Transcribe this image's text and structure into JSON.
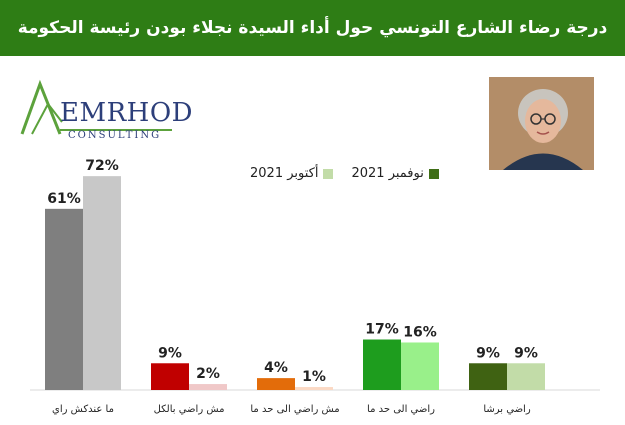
{
  "header": {
    "title": "درجة رضاء الشارع التونسي حول أداء السيدة نجلاء بودن رئيسة الحكومة"
  },
  "logo": {
    "word": "EMRHOD",
    "sub": "CONSULTING"
  },
  "chart_data": {
    "type": "bar",
    "categories": [
      "ما عندكش راي",
      "مش راضي بالكل",
      "مش راضي الى حد ما",
      "راضي الى حد ما",
      "راضي برشا"
    ],
    "series": [
      {
        "name": "نوفمبر 2021",
        "values": [
          61,
          9,
          4,
          17,
          9
        ]
      },
      {
        "name": "أكتوبر 2021",
        "values": [
          72,
          2,
          1,
          16,
          9
        ]
      }
    ],
    "value_labels": [
      [
        "61%",
        "9%",
        "4%",
        "17%",
        "9%"
      ],
      [
        "72%",
        "2%",
        "1%",
        "16%",
        "9%"
      ]
    ],
    "legend_placement": "top-center",
    "grid": false,
    "colors": {
      "series1": [
        "#7f7f7f",
        "#c00000",
        "#e36c0a",
        "#1e9d1e",
        "#3f6212"
      ],
      "series2": [
        "#c8c8c8",
        "#f0c8c8",
        "#fbd9c4",
        "#99f08a",
        "#c2dca8"
      ]
    },
    "legend_colors": [
      "#3f6e16",
      "#c2dca8"
    ]
  }
}
